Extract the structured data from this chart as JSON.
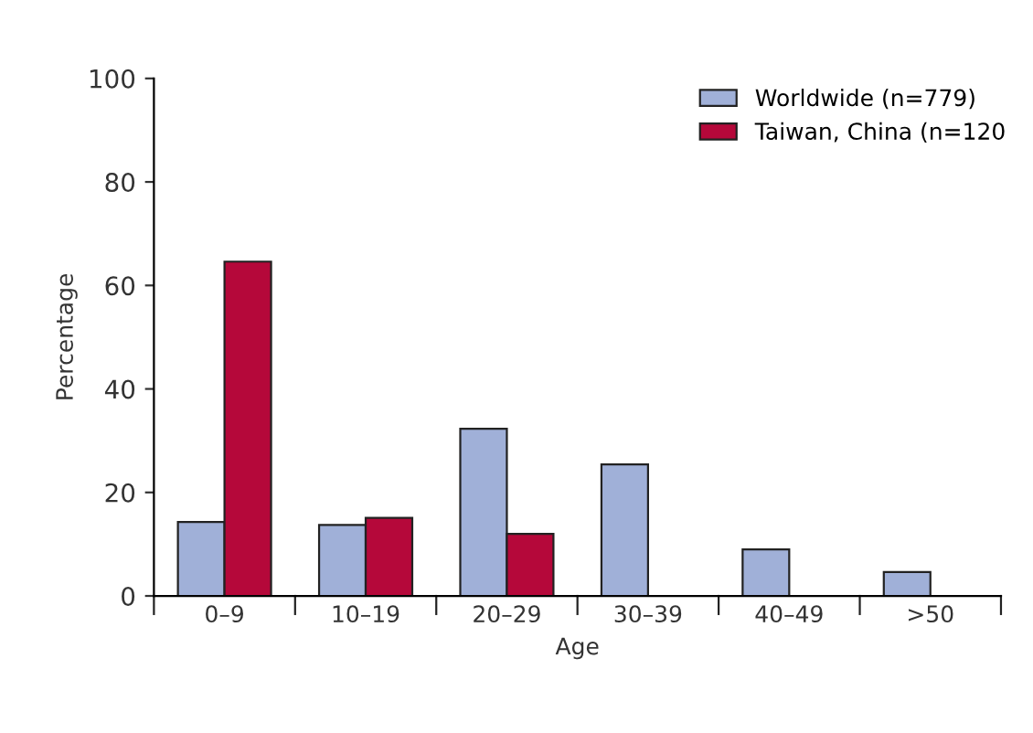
{
  "chart_data": {
    "type": "bar",
    "xlabel": "Age",
    "ylabel": "Percentage",
    "categories": [
      "0–9",
      "10–19",
      "20–29",
      "30–39",
      "40–49",
      ">50"
    ],
    "series": [
      {
        "name": "Worldwide (n=779)",
        "color": "#a0b0d8",
        "values": [
          14.3,
          13.7,
          32.3,
          25.4,
          9.0,
          4.6
        ]
      },
      {
        "name": "Taiwan, China (n=120",
        "color": "#b5083a",
        "values": [
          64.6,
          15.1,
          12.0,
          null,
          null,
          null
        ]
      }
    ],
    "ylim": [
      0,
      100
    ],
    "yticks": [
      0,
      20,
      40,
      60,
      80,
      100
    ],
    "grid": false,
    "legend": "top right"
  }
}
